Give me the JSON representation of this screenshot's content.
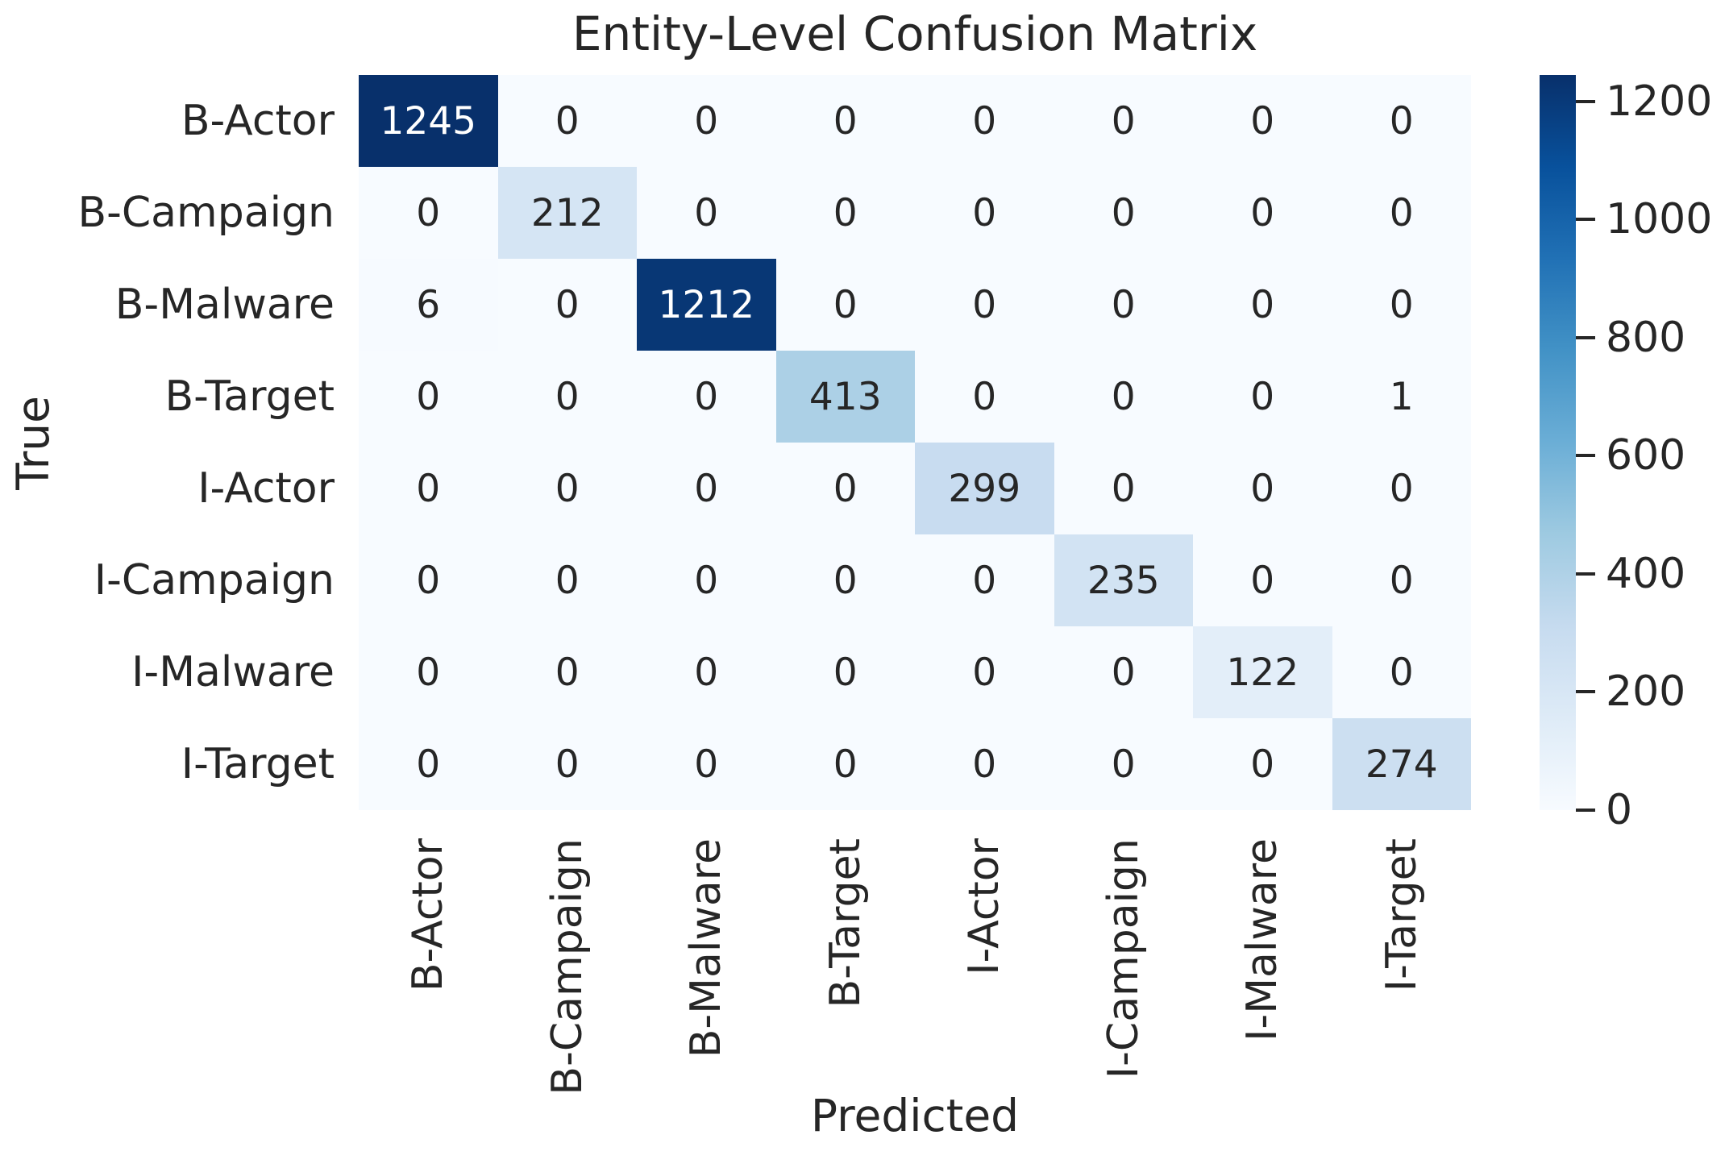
{
  "chart_data": {
    "type": "heatmap",
    "title": "Entity-Level Confusion Matrix",
    "xlabel": "Predicted",
    "ylabel": "True",
    "x_categories": [
      "B-Actor",
      "B-Campaign",
      "B-Malware",
      "B-Target",
      "I-Actor",
      "I-Campaign",
      "I-Malware",
      "I-Target"
    ],
    "y_categories": [
      "B-Actor",
      "B-Campaign",
      "B-Malware",
      "B-Target",
      "I-Actor",
      "I-Campaign",
      "I-Malware",
      "I-Target"
    ],
    "matrix": [
      [
        1245,
        0,
        0,
        0,
        0,
        0,
        0,
        0
      ],
      [
        0,
        212,
        0,
        0,
        0,
        0,
        0,
        0
      ],
      [
        6,
        0,
        1212,
        0,
        0,
        0,
        0,
        0
      ],
      [
        0,
        0,
        0,
        413,
        0,
        0,
        0,
        1
      ],
      [
        0,
        0,
        0,
        0,
        299,
        0,
        0,
        0
      ],
      [
        0,
        0,
        0,
        0,
        0,
        235,
        0,
        0
      ],
      [
        0,
        0,
        0,
        0,
        0,
        0,
        122,
        0
      ],
      [
        0,
        0,
        0,
        0,
        0,
        0,
        0,
        274
      ]
    ],
    "vmin": 0,
    "vmax": 1245,
    "annotated": true,
    "grid_on": false,
    "colormap": {
      "name": "Blues",
      "stops": [
        "#f7fbff",
        "#deebf7",
        "#c6dbef",
        "#9ecae1",
        "#6baed6",
        "#4292c6",
        "#2171b5",
        "#08519c",
        "#08306b"
      ]
    },
    "colorbar": {
      "position": "right",
      "ticks": [
        "0",
        "200",
        "400",
        "600",
        "800",
        "1000",
        "1200"
      ],
      "tick_values": [
        0,
        200,
        400,
        600,
        800,
        1000,
        1200
      ]
    },
    "text_colors": {
      "dark": "#262626",
      "light": "#ffffff"
    }
  }
}
